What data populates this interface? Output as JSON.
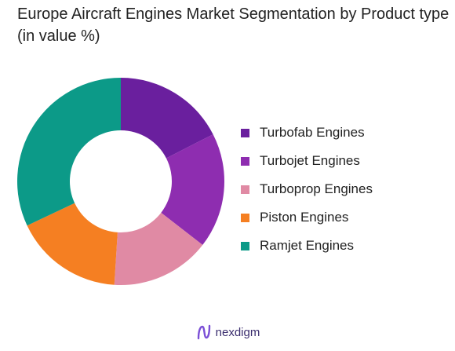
{
  "chart_data": {
    "type": "pie",
    "title": "Europe Aircraft Engines Market Segmentation by Product type (in value %)",
    "donut": true,
    "legend_position": "right",
    "categories": [
      "Turbofab Engines",
      "Turbojet Engines",
      "Turboprop Engines",
      "Piston Engines",
      "Ramjet Engines"
    ],
    "values": [
      17.5,
      18,
      15.5,
      17,
      32
    ],
    "colors": [
      "#6a1f9e",
      "#8e2db0",
      "#e08aa4",
      "#f57f22",
      "#0c9a88"
    ]
  },
  "brand": {
    "name": "nexdigm",
    "logo_icon": "nexdigm-logo-icon",
    "logo_color": "#7b4fd6"
  }
}
